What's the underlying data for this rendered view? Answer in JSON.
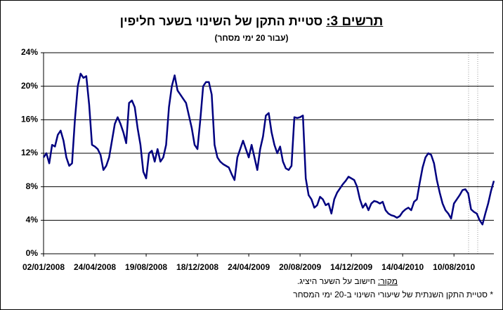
{
  "chart_data": {
    "type": "line",
    "title_label": "תרשים 3:",
    "title": "סטיית התקן של השינוי בשער חליפין",
    "subtitle": "(עבור 20 ימי מסחר)",
    "source_label": "מקור:",
    "source": "חישוב על השער היציג.",
    "note": "* סטיית התקן השנתית של שיעורי השינוי ב-20 ימי המסחר",
    "categories": [
      "02/01/2008",
      null,
      null,
      null,
      null,
      null,
      null,
      null,
      null,
      null,
      null,
      null,
      null,
      null,
      null,
      null,
      null,
      null,
      "24/04/2008",
      null,
      null,
      null,
      null,
      null,
      null,
      null,
      null,
      null,
      null,
      null,
      null,
      null,
      null,
      null,
      null,
      null,
      "19/08/2008",
      null,
      null,
      null,
      null,
      null,
      null,
      null,
      null,
      null,
      null,
      null,
      null,
      null,
      null,
      null,
      null,
      null,
      "18/12/2008",
      null,
      null,
      null,
      null,
      null,
      null,
      null,
      null,
      null,
      null,
      null,
      null,
      null,
      null,
      null,
      null,
      null,
      "24/04/2009",
      null,
      null,
      null,
      null,
      null,
      null,
      null,
      null,
      null,
      null,
      null,
      null,
      null,
      null,
      null,
      null,
      null,
      "20/08/2009",
      null,
      null,
      null,
      null,
      null,
      null,
      null,
      null,
      null,
      null,
      null,
      null,
      null,
      null,
      null,
      null,
      null,
      "14/12/2009",
      null,
      null,
      null,
      null,
      null,
      null,
      null,
      null,
      null,
      null,
      null,
      null,
      null,
      null,
      null,
      null,
      null,
      "14/04/2010",
      null,
      null,
      null,
      null,
      null,
      null,
      null,
      null,
      null,
      null,
      null,
      null,
      null,
      null,
      null,
      null,
      null,
      "10/08/2010",
      null,
      null,
      null,
      null,
      null,
      null,
      null,
      null,
      null,
      null,
      null,
      null,
      null,
      null
    ],
    "series": [
      {
        "color": "#000080",
        "values": [
          11.5,
          12,
          10.8,
          13,
          12.8,
          14.2,
          14.7,
          13.5,
          11.5,
          10.5,
          10.8,
          16,
          20,
          21.5,
          21,
          21.2,
          17.8,
          13,
          12.8,
          12.5,
          11.8,
          10,
          10.5,
          11.5,
          13.5,
          15.5,
          16.3,
          15.5,
          14.5,
          13.2,
          18,
          18.3,
          17.5,
          15,
          13,
          9.8,
          9,
          12,
          12.3,
          11,
          12.5,
          11,
          11.5,
          13,
          17.5,
          20,
          21.3,
          19.5,
          19,
          18.5,
          18,
          16.5,
          15,
          13,
          12.5,
          16,
          20,
          20.5,
          20.5,
          19,
          13,
          11.5,
          11,
          10.7,
          10.5,
          10.3,
          9.5,
          8.8,
          11.5,
          12.5,
          13.5,
          12.5,
          11.5,
          13,
          11.5,
          10,
          12.5,
          14,
          16.5,
          16.8,
          14.5,
          13,
          12,
          12.8,
          11,
          10.2,
          10,
          10.5,
          16.3,
          16.2,
          16.3,
          16.5,
          9,
          7,
          6.5,
          5.5,
          5.8,
          6.8,
          6.5,
          5.8,
          6,
          4.8,
          6.5,
          7.3,
          7.8,
          8.3,
          8.7,
          9.2,
          9,
          8.8,
          8,
          6.5,
          5.5,
          6,
          5.2,
          6,
          6.3,
          6.2,
          6,
          6.2,
          5.2,
          4.8,
          4.6,
          4.5,
          4.3,
          4.5,
          5,
          5.3,
          5.5,
          5.2,
          6.2,
          6.5,
          8.5,
          10.3,
          11.5,
          12,
          11.8,
          10.8,
          8.8,
          7.3,
          6,
          5.2,
          4.8,
          4.2,
          6,
          6.5,
          7,
          7.6,
          7.7,
          7.2,
          5.3,
          5,
          4.8,
          4,
          3.5,
          4.8,
          6,
          7.5,
          8.7
        ]
      }
    ],
    "ylim": [
      0,
      24
    ],
    "yticks": [
      {
        "value": 0,
        "label": "0%"
      },
      {
        "value": 4,
        "label": "4%"
      },
      {
        "value": 8,
        "label": "8%"
      },
      {
        "value": 12,
        "label": "12%"
      },
      {
        "value": 16,
        "label": "16%"
      },
      {
        "value": 20,
        "label": "20%"
      },
      {
        "value": 24,
        "label": "24%"
      }
    ],
    "grid": true
  }
}
